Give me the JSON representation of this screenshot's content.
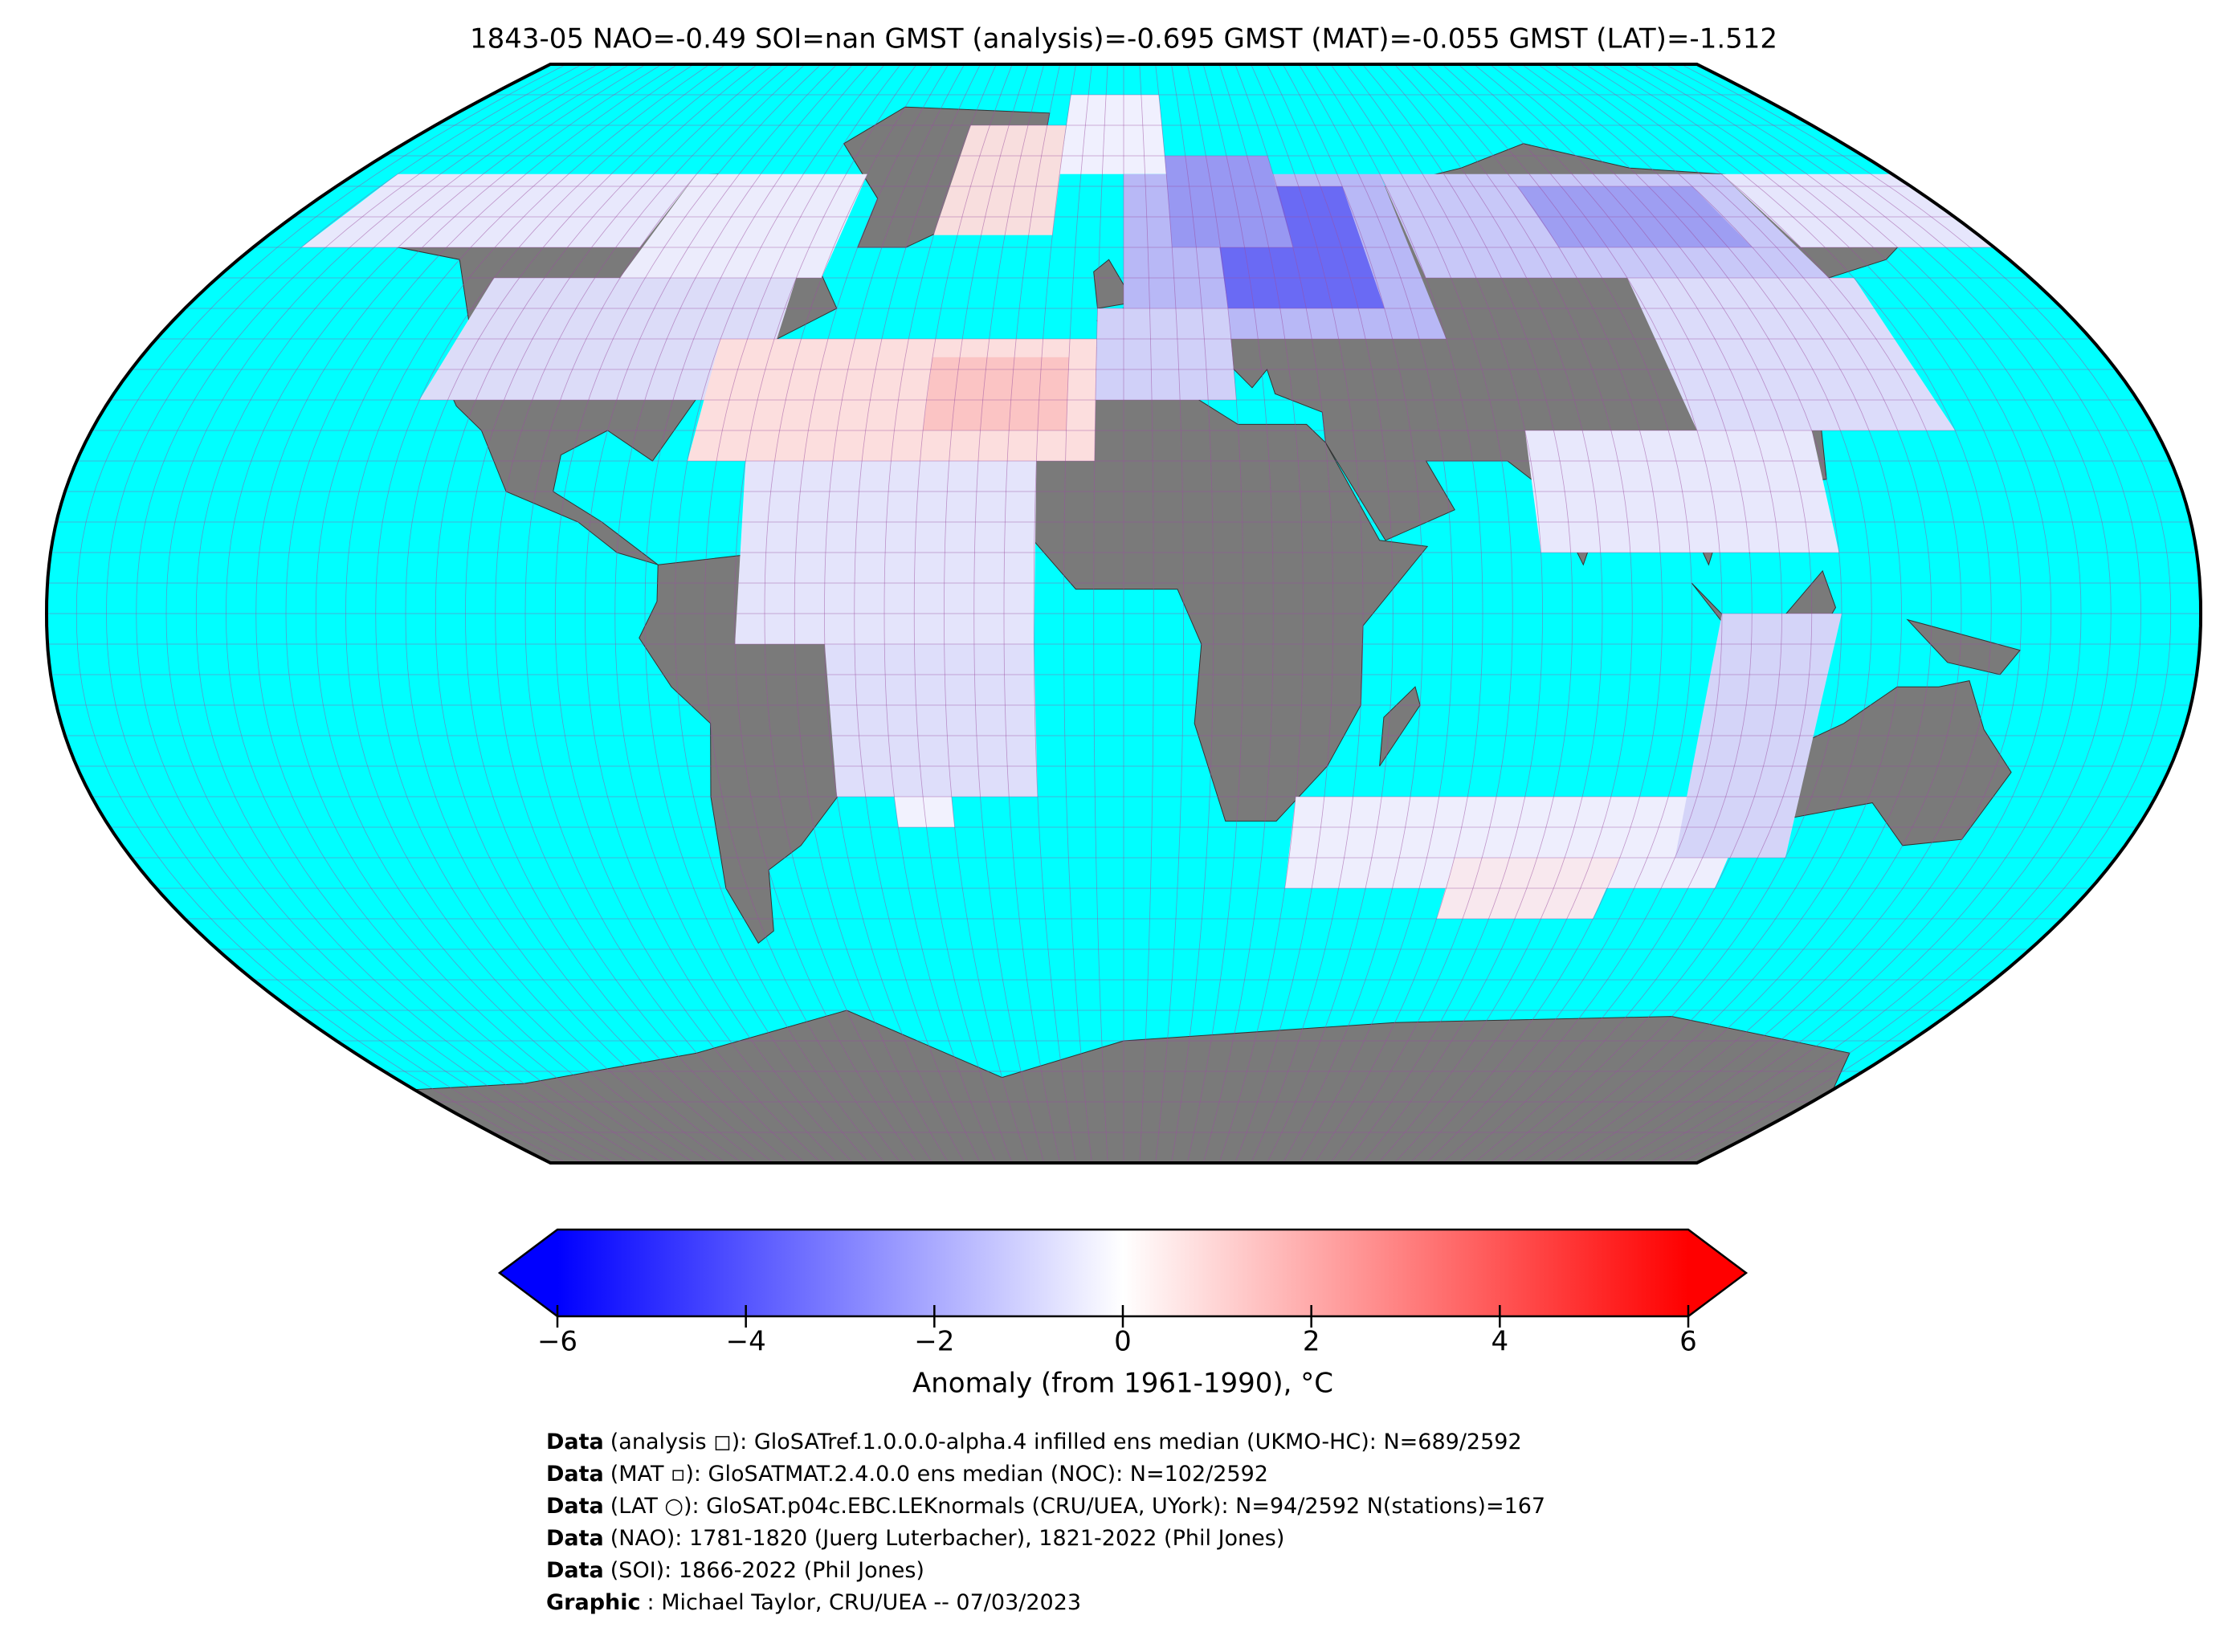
{
  "title": "1843-05 NAO=-0.49 SOI=nan GMST (analysis)=-0.695 GMST (MAT)=-0.055 GMST (LAT)=-1.512",
  "colorbar": {
    "label": "Anomaly (from 1961-1990), °C",
    "lim": [
      -6,
      6
    ],
    "ticks": [
      {
        "value": -6,
        "label": "−6"
      },
      {
        "value": -4,
        "label": "−4"
      },
      {
        "value": -2,
        "label": "−2"
      },
      0,
      2,
      4,
      6
    ],
    "colors": [
      "#0000ff",
      "#ffffff",
      "#ff0000"
    ]
  },
  "credits": [
    {
      "label": "Data",
      "text": "(analysis ◻): GloSATref.1.0.0.0-alpha.4 infilled ens median (UKMO-HC): N=689/2592"
    },
    {
      "label": "Data",
      "text": "(MAT ▫): GloSATMAT.2.4.0.0 ens median (NOC): N=102/2592"
    },
    {
      "label": "Data",
      "text": "(LAT ○): GloSAT.p04c.EBC.LEKnormals (CRU/UEA, UYork): N=94/2592 N(stations)=167"
    },
    {
      "label": "Data",
      "text": "(NAO): 1781-1820 (Juerg Luterbacher), 1821-2022 (Phil Jones)"
    },
    {
      "label": "Data",
      "text": "(SOI): 1866-2022 (Phil Jones)"
    },
    {
      "label": "Graphic",
      "text": ": Michael Taylor, CRU/UEA -- 07/03/2023"
    }
  ]
}
